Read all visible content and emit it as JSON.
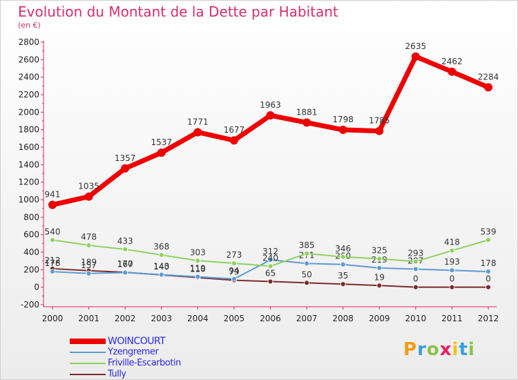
{
  "header": {
    "title": "Evolution du Montant de la Dette par Habitant",
    "subtitle": "(en €)"
  },
  "logo": {
    "letters": [
      "P",
      "r",
      "o",
      "x",
      "i",
      "t",
      "i"
    ],
    "colors": [
      "#f39c12",
      "#3a9fe0",
      "#8bc34a",
      "#e91e63",
      "#ffc107",
      "#3a9fe0",
      "#8bc34a"
    ]
  },
  "chart_data": {
    "type": "line",
    "categories": [
      "2000",
      "2001",
      "2002",
      "2003",
      "2004",
      "2005",
      "2006",
      "2007",
      "2008",
      "2009",
      "2010",
      "2011",
      "2012"
    ],
    "ylim": [
      -200,
      2800
    ],
    "yticks": [
      "-200",
      "0",
      "200",
      "400",
      "600",
      "800",
      "1000",
      "1200",
      "1400",
      "1600",
      "1800",
      "2000",
      "2200",
      "2400",
      "2600",
      "2800"
    ],
    "grid": false,
    "legend_position": "bottom-left",
    "series": [
      {
        "name": "Tully",
        "color": "#7a2b2b",
        "emphasis": false,
        "values": [
          212,
          189,
          170,
          140,
          110,
          79,
          65,
          50,
          35,
          19,
          0,
          0,
          0
        ],
        "labels": [
          "212",
          "189",
          "170",
          "140",
          "110",
          "79",
          "65",
          "50",
          "35",
          "19",
          "0",
          "0",
          "0"
        ]
      },
      {
        "name": "Yzengremer",
        "color": "#5b9bd5",
        "emphasis": false,
        "values": [
          178,
          157,
          167,
          143,
          119,
          94,
          312,
          271,
          260,
          219,
          207,
          193,
          178
        ],
        "labels": [
          "178",
          "157",
          "167",
          "143",
          "119",
          "94",
          "312",
          "271",
          "260",
          "219",
          "207",
          "193",
          "178"
        ]
      },
      {
        "name": "Friville-Escarbotin",
        "color": "#8ed160",
        "emphasis": false,
        "values": [
          540,
          478,
          433,
          368,
          303,
          273,
          240,
          385,
          346,
          325,
          293,
          418,
          539
        ],
        "labels": [
          "540",
          "478",
          "433",
          "368",
          "303",
          "273",
          "240",
          "385",
          "346",
          "325",
          "293",
          "418",
          "539"
        ]
      },
      {
        "name": "WOINCOURT",
        "color": "#ee0000",
        "emphasis": true,
        "values": [
          941,
          1035,
          1357,
          1537,
          1771,
          1677,
          1963,
          1881,
          1798,
          1785,
          2635,
          2462,
          2284
        ],
        "labels": [
          "941",
          "1035",
          "1357",
          "1537",
          "1771",
          "1677",
          "1963",
          "1881",
          "1798",
          "1785",
          "2635",
          "2462",
          "2284"
        ]
      }
    ],
    "legend": [
      {
        "name": "WOINCOURT",
        "color": "#ee0000",
        "text_color": "#2a2ae0",
        "thick": true
      },
      {
        "name": "Yzengremer",
        "color": "#5b9bd5",
        "text_color": "#2a2ae0",
        "thick": false
      },
      {
        "name": "Friville-Escarbotin",
        "color": "#8ed160",
        "text_color": "#2a2ae0",
        "thick": false
      },
      {
        "name": "Tully",
        "color": "#7a2b2b",
        "text_color": "#2a2ae0",
        "thick": false
      }
    ]
  }
}
